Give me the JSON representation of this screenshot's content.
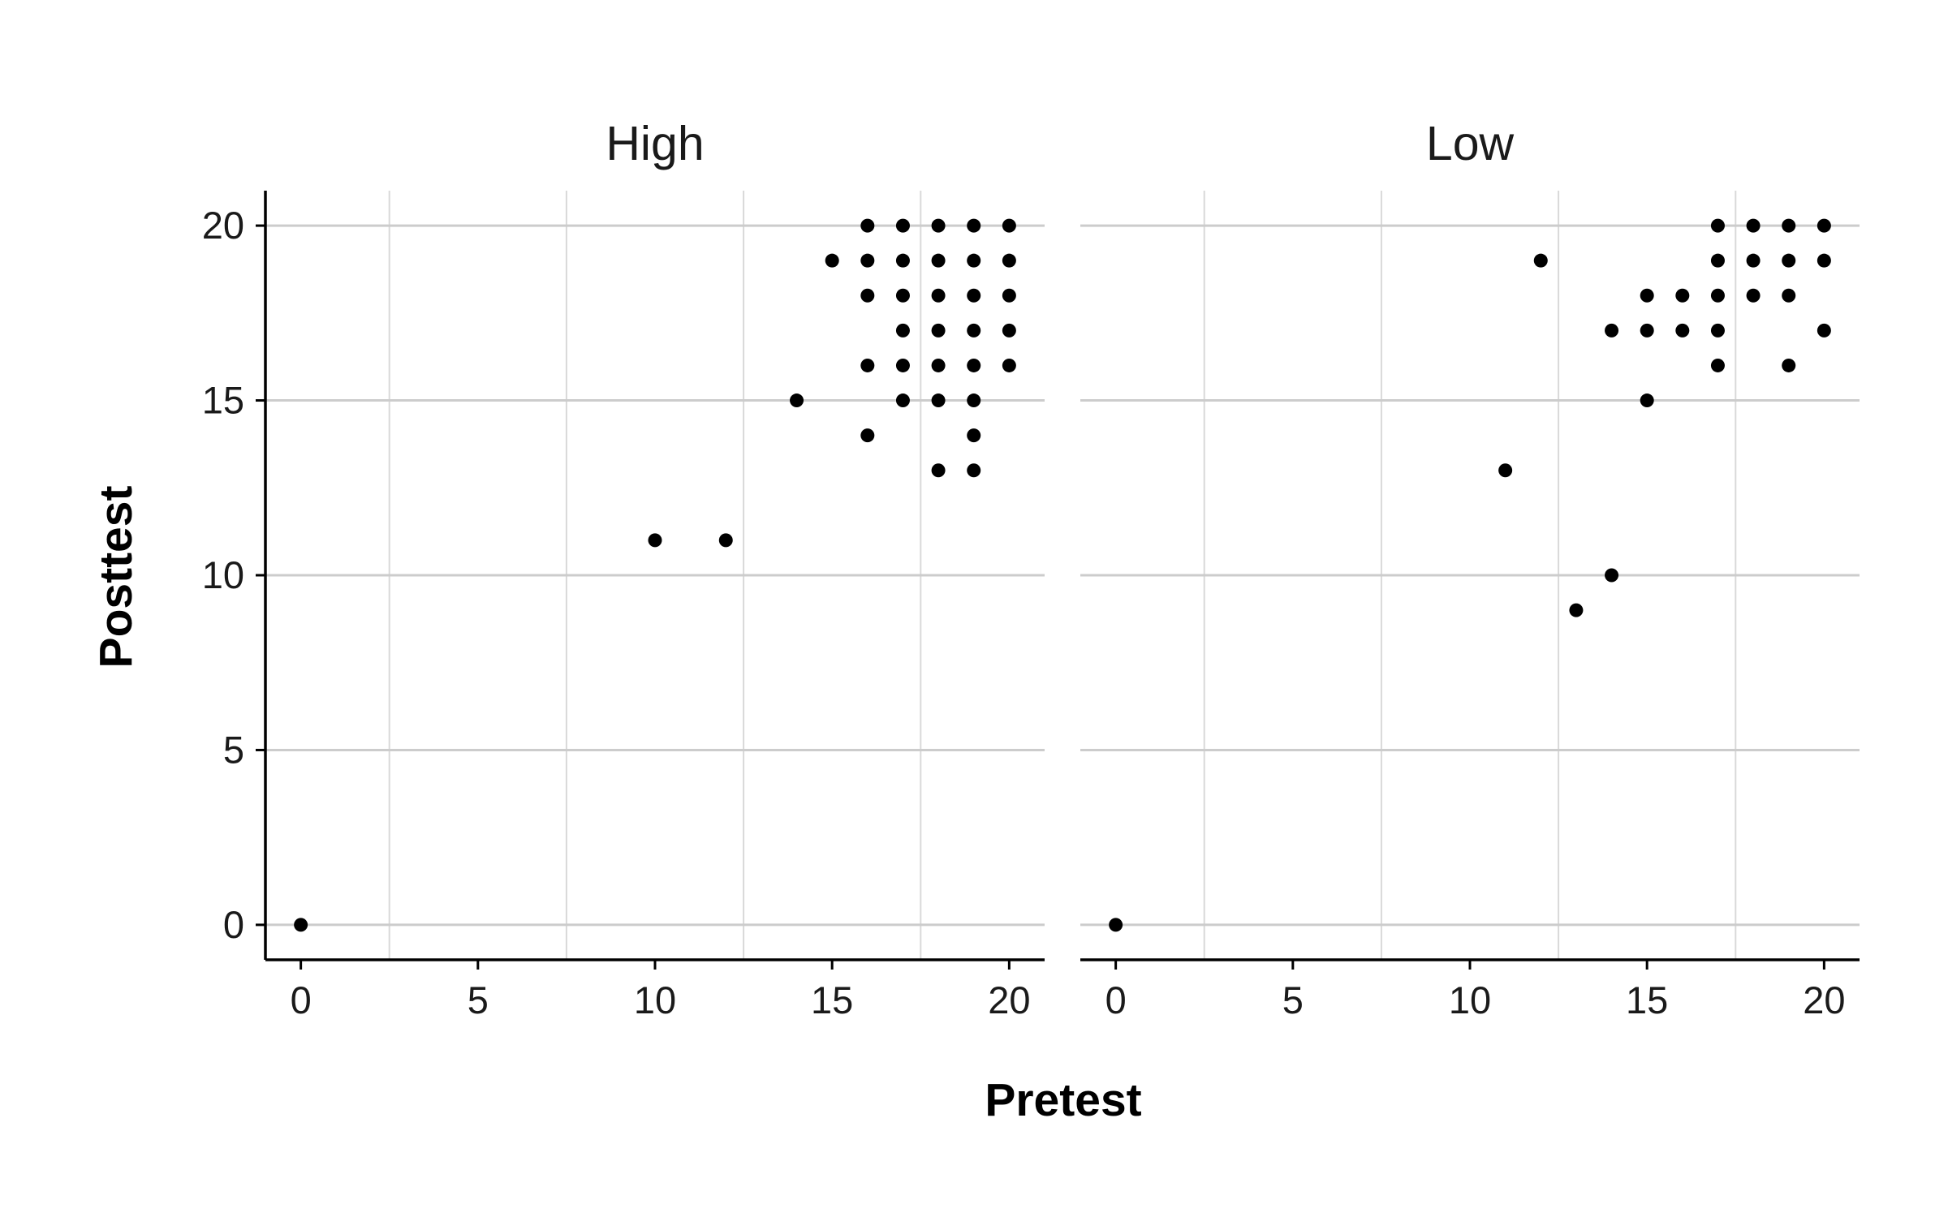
{
  "chart_data": {
    "type": "scatter",
    "xlabel": "Pretest",
    "ylabel": "Posttest",
    "xlim": [
      -1,
      21
    ],
    "ylim": [
      -1,
      21
    ],
    "x_ticks": [
      0,
      5,
      10,
      15,
      20
    ],
    "y_ticks": [
      0,
      5,
      10,
      15,
      20
    ],
    "grid": true,
    "legend": "none",
    "point_color": "#000000",
    "panels": [
      {
        "title": "High",
        "points": [
          [
            0,
            0
          ],
          [
            10,
            11
          ],
          [
            12,
            11
          ],
          [
            14,
            15
          ],
          [
            15,
            19
          ],
          [
            16,
            20
          ],
          [
            16,
            19
          ],
          [
            16,
            18
          ],
          [
            16,
            16
          ],
          [
            16,
            14
          ],
          [
            17,
            20
          ],
          [
            17,
            19
          ],
          [
            17,
            18
          ],
          [
            17,
            17
          ],
          [
            17,
            16
          ],
          [
            17,
            15
          ],
          [
            18,
            20
          ],
          [
            18,
            19
          ],
          [
            18,
            18
          ],
          [
            18,
            17
          ],
          [
            18,
            16
          ],
          [
            18,
            15
          ],
          [
            18,
            13
          ],
          [
            19,
            20
          ],
          [
            19,
            19
          ],
          [
            19,
            18
          ],
          [
            19,
            17
          ],
          [
            19,
            16
          ],
          [
            19,
            15
          ],
          [
            19,
            14
          ],
          [
            19,
            13
          ],
          [
            20,
            20
          ],
          [
            20,
            19
          ],
          [
            20,
            18
          ],
          [
            20,
            17
          ],
          [
            20,
            16
          ]
        ]
      },
      {
        "title": "Low",
        "points": [
          [
            0,
            0
          ],
          [
            11,
            13
          ],
          [
            12,
            19
          ],
          [
            13,
            9
          ],
          [
            14,
            10
          ],
          [
            14,
            17
          ],
          [
            15,
            18
          ],
          [
            15,
            17
          ],
          [
            15,
            15
          ],
          [
            16,
            18
          ],
          [
            16,
            17
          ],
          [
            17,
            20
          ],
          [
            17,
            19
          ],
          [
            17,
            18
          ],
          [
            17,
            17
          ],
          [
            17,
            16
          ],
          [
            18,
            20
          ],
          [
            18,
            19
          ],
          [
            18,
            18
          ],
          [
            19,
            20
          ],
          [
            19,
            19
          ],
          [
            19,
            18
          ],
          [
            19,
            16
          ],
          [
            20,
            20
          ],
          [
            20,
            19
          ],
          [
            20,
            17
          ]
        ]
      }
    ]
  }
}
